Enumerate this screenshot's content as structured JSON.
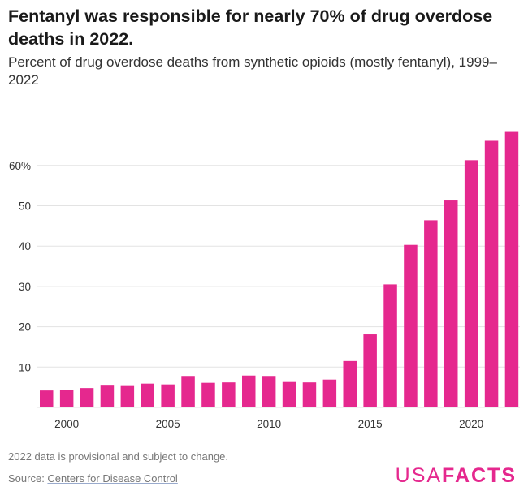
{
  "title": "Fentanyl was responsible for nearly 70% of drug overdose deaths in 2022.",
  "subtitle": "Percent of drug overdose deaths from synthetic opioids (mostly fentanyl), 1999–2022",
  "note": "2022 data is provisional and subject to change.",
  "source_prefix": "Source: ",
  "source_link": "Centers for Disease Control",
  "logo": {
    "left": "USA",
    "right": "FACTS"
  },
  "colors": {
    "bar": "#e5288e",
    "grid": "#e3e3e3",
    "logo": "#e5288e"
  },
  "chart_data": {
    "type": "bar",
    "title": "Fentanyl was responsible for nearly 70% of drug overdose deaths in 2022.",
    "subtitle": "Percent of drug overdose deaths from synthetic opioids (mostly fentanyl), 1999–2022",
    "categories": [
      1999,
      2000,
      2001,
      2002,
      2003,
      2004,
      2005,
      2006,
      2007,
      2008,
      2009,
      2010,
      2011,
      2012,
      2013,
      2014,
      2015,
      2016,
      2017,
      2018,
      2019,
      2020,
      2021,
      2022
    ],
    "values": [
      4.2,
      4.4,
      4.8,
      5.4,
      5.3,
      5.9,
      5.7,
      7.8,
      6.1,
      6.2,
      7.9,
      7.8,
      6.3,
      6.2,
      6.9,
      11.5,
      18.1,
      30.5,
      40.3,
      46.4,
      51.3,
      61.3,
      66.1,
      68.3
    ],
    "ylim": [
      0,
      70
    ],
    "yticks": [
      10,
      20,
      30,
      40,
      50,
      60
    ],
    "ytick_labels": [
      "10",
      "20",
      "30",
      "40",
      "50",
      "60%"
    ],
    "xticks": [
      2000,
      2005,
      2010,
      2015,
      2020
    ],
    "xtick_labels": [
      "2000",
      "2005",
      "2010",
      "2015",
      "2020"
    ],
    "grid": true,
    "xlabel": "",
    "ylabel": ""
  }
}
